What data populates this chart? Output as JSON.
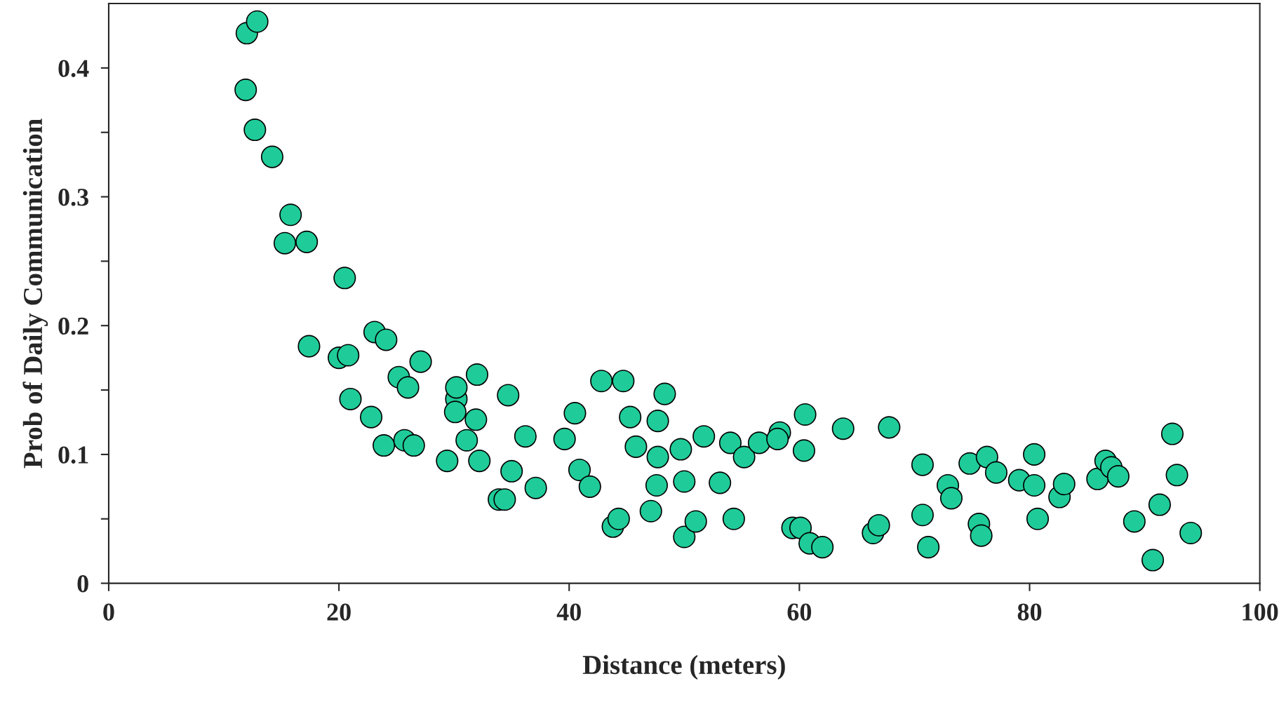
{
  "chart_data": {
    "type": "scatter",
    "xlabel": "Distance (meters)",
    "ylabel": "Prob of Daily Communication",
    "x": [
      11.9,
      12.0,
      12.9,
      12.7,
      14.2,
      15.8,
      15.3,
      17.2,
      17.4,
      20.5,
      20.0,
      20.8,
      21.0,
      22.8,
      23.1,
      24.1,
      23.9,
      25.2,
      26.0,
      25.7,
      26.5,
      27.1,
      29.4,
      30.2,
      30.2,
      30.1,
      31.1,
      32.0,
      31.9,
      32.2,
      33.9,
      34.4,
      34.7,
      35.0,
      36.2,
      37.1,
      39.6,
      40.5,
      40.9,
      41.8,
      42.8,
      43.8,
      44.3,
      44.7,
      45.3,
      45.8,
      47.1,
      47.7,
      47.7,
      47.6,
      48.3,
      49.7,
      50.0,
      50.0,
      51.0,
      51.7,
      53.1,
      54.0,
      54.3,
      55.2,
      56.5,
      58.3,
      58.1,
      59.4,
      60.1,
      60.4,
      60.5,
      60.9,
      62.0,
      63.8,
      66.4,
      66.9,
      67.8,
      70.7,
      70.7,
      71.2,
      72.9,
      73.2,
      74.8,
      75.6,
      75.8,
      76.3,
      77.1,
      79.1,
      80.4,
      80.4,
      80.7,
      82.6,
      83.0,
      85.9,
      86.6,
      87.1,
      87.7,
      89.1,
      90.7,
      91.3,
      92.4,
      92.8,
      94.0
    ],
    "series": [
      {
        "color": "#1fcc99",
        "values": [
          0.383,
          0.427,
          0.436,
          0.352,
          0.331,
          0.286,
          0.264,
          0.265,
          0.184,
          0.237,
          0.175,
          0.177,
          0.143,
          0.129,
          0.195,
          0.189,
          0.107,
          0.16,
          0.152,
          0.111,
          0.107,
          0.172,
          0.095,
          0.143,
          0.152,
          0.133,
          0.111,
          0.162,
          0.127,
          0.095,
          0.065,
          0.065,
          0.146,
          0.087,
          0.114,
          0.074,
          0.112,
          0.132,
          0.088,
          0.075,
          0.157,
          0.044,
          0.05,
          0.157,
          0.129,
          0.106,
          0.056,
          0.126,
          0.098,
          0.076,
          0.147,
          0.104,
          0.079,
          0.036,
          0.048,
          0.114,
          0.078,
          0.109,
          0.05,
          0.098,
          0.109,
          0.117,
          0.112,
          0.043,
          0.043,
          0.103,
          0.131,
          0.031,
          0.028,
          0.12,
          0.039,
          0.045,
          0.121,
          0.092,
          0.053,
          0.028,
          0.076,
          0.066,
          0.093,
          0.046,
          0.037,
          0.098,
          0.086,
          0.08,
          0.1,
          0.076,
          0.05,
          0.067,
          0.077,
          0.081,
          0.095,
          0.09,
          0.083,
          0.048,
          0.018,
          0.061,
          0.116,
          0.084,
          0.039
        ]
      }
    ],
    "xlim": [
      0,
      100
    ],
    "xticks": [
      0,
      20,
      40,
      60,
      80,
      100
    ],
    "ylim": [
      0,
      0.45
    ],
    "yticks": [
      0,
      {
        "value": 0.05,
        "label": null
      },
      0.1,
      {
        "value": 0.15,
        "label": null
      },
      0.2,
      {
        "value": 0.25,
        "label": null
      },
      0.3,
      {
        "value": 0.35,
        "label": null
      },
      0.4
    ],
    "marker": "circle",
    "grid": false
  }
}
